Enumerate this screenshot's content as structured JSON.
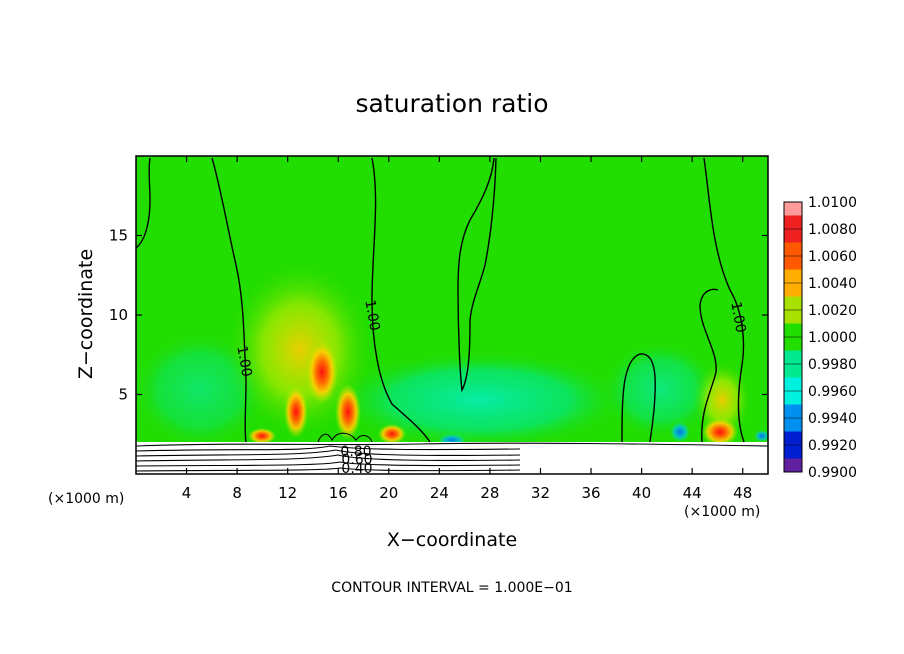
{
  "chart_data": {
    "type": "heatmap",
    "title": "saturation ratio",
    "xlabel": "X−coordinate",
    "ylabel": "Z−coordinate",
    "x_multiplier_left": "(×1000 m)",
    "x_multiplier_right": "(×1000 m)",
    "xlim": [
      0,
      50
    ],
    "ylim": [
      0,
      20
    ],
    "x_ticks": [
      "4",
      "8",
      "12",
      "16",
      "20",
      "24",
      "28",
      "32",
      "36",
      "40",
      "44",
      "48"
    ],
    "y_ticks": [
      "5",
      "10",
      "15"
    ],
    "footer": "CONTOUR INTERVAL = 1.000E−01",
    "colorbar": {
      "labels": [
        "1.0100",
        "1.0080",
        "1.0060",
        "1.0040",
        "1.0020",
        "1.0000",
        "0.9980",
        "0.9960",
        "0.9940",
        "0.9920",
        "0.9900"
      ],
      "colors": [
        "#ff9a9a",
        "#ee2020",
        "#ff5a00",
        "#ffae00",
        "#a8e000",
        "#22dd00",
        "#00e890",
        "#00f0e0",
        "#0090f0",
        "#0020d0",
        "#6020a0"
      ]
    },
    "contour_labels": [
      "1.00",
      "1.00",
      "1.00",
      "0.80",
      "0.60",
      "0.40"
    ],
    "background_color": "#22dd00"
  }
}
